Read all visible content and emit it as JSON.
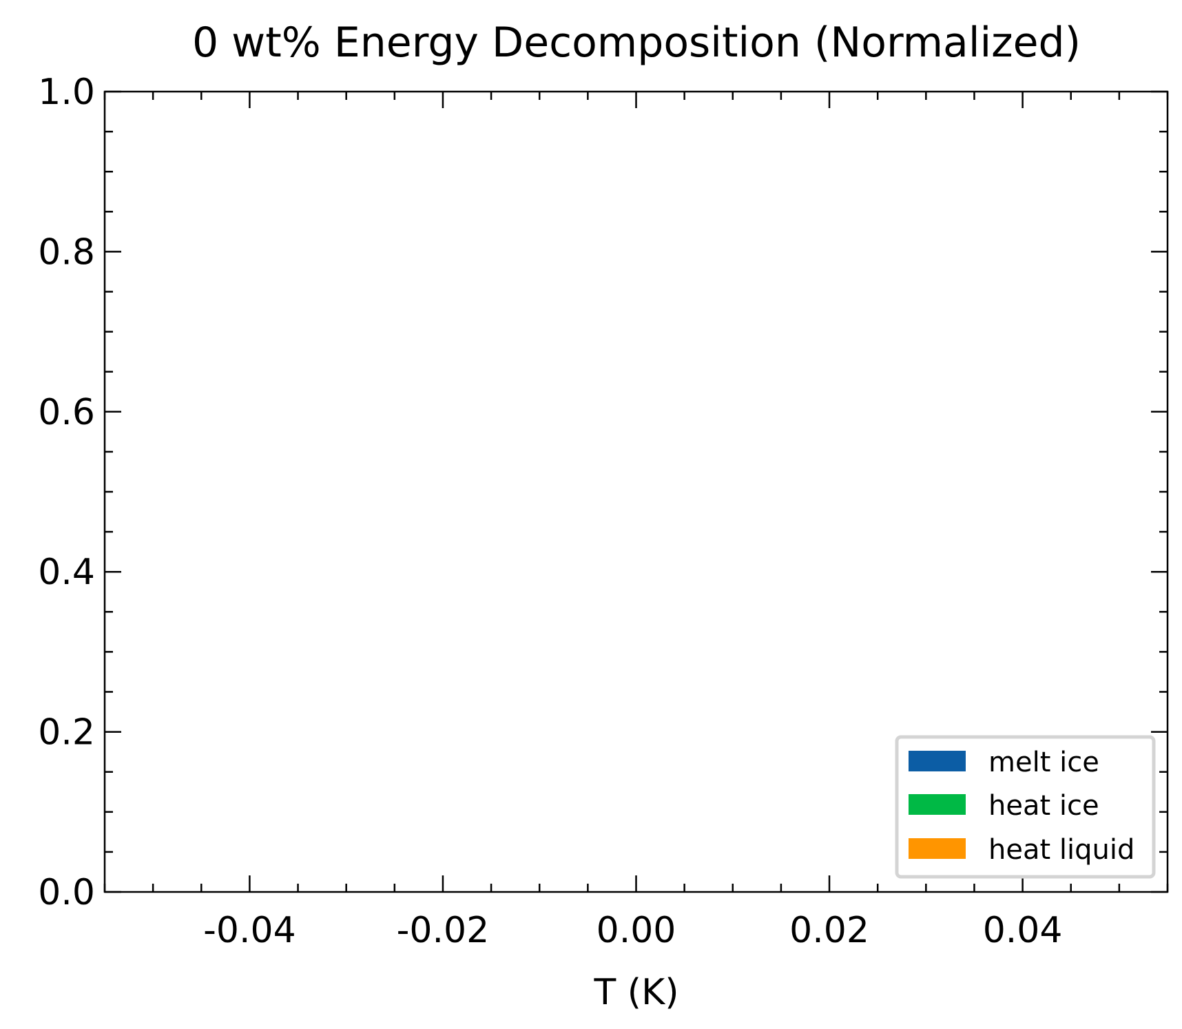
{
  "chart_data": {
    "type": "area",
    "title": "0 wt% Energy Decomposition (Normalized)",
    "xlabel": "T (K)",
    "ylabel": "",
    "xlim": [
      -0.055,
      0.055
    ],
    "ylim": [
      0.0,
      1.0
    ],
    "x_ticks": [
      -0.04,
      -0.02,
      0.0,
      0.02,
      0.04
    ],
    "x_tick_labels": [
      "-0.04",
      "-0.02",
      "0.00",
      "0.02",
      "0.04"
    ],
    "y_ticks": [
      0.0,
      0.2,
      0.4,
      0.6,
      0.8,
      1.0
    ],
    "y_tick_labels": [
      "0.0",
      "0.2",
      "0.4",
      "0.6",
      "0.8",
      "1.0"
    ],
    "x_minor_step": 0.005,
    "y_minor_step": 0.05,
    "grid": false,
    "legend_position": "lower-right",
    "series": [
      {
        "name": "melt ice",
        "color": "#0C5DA5",
        "x": [],
        "values": []
      },
      {
        "name": "heat ice",
        "color": "#00B945",
        "x": [],
        "values": []
      },
      {
        "name": "heat liquid",
        "color": "#FF9500",
        "x": [],
        "values": []
      }
    ]
  }
}
